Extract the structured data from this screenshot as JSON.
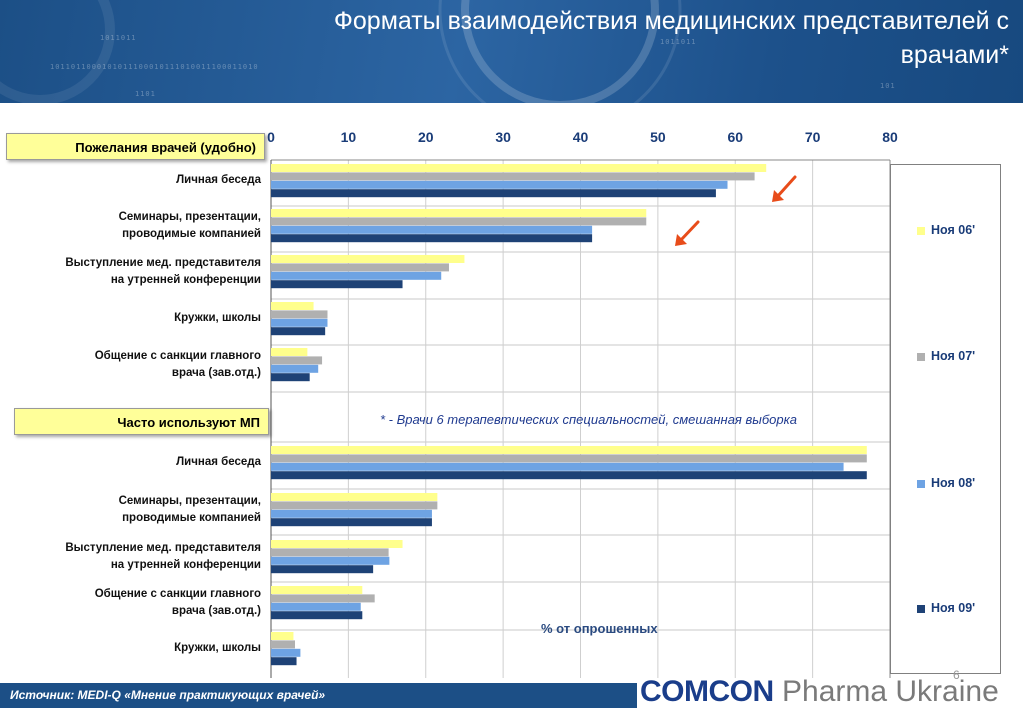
{
  "title": "Форматы взаимодействия медицинских представителей с врачами*",
  "groups": [
    {
      "label": "Пожелания врачей (удобно)"
    },
    {
      "label": "Часто используют МП"
    }
  ],
  "note": "* -  Врачи 6 терапевтических специальностей, смешанная выборка",
  "footer": {
    "source": "Источник: MEDI-Q «Мнение практикующих врачей»",
    "logo_main": "COMCON",
    "logo_sub": "Pharma Ukraine",
    "page_number": "6"
  },
  "colors": {
    "header": "#1c4f86",
    "arrow": "#e84c1a"
  },
  "chart_data": {
    "type": "bar",
    "orientation": "horizontal",
    "xlabel": "% от опрошенных",
    "xlim": [
      0,
      80
    ],
    "xticks": [
      "0",
      "10",
      "20",
      "30",
      "40",
      "50",
      "60",
      "70",
      "80"
    ],
    "legend_position": "right",
    "series": [
      {
        "name": "Ноя 06'",
        "color": "#ffff8c"
      },
      {
        "name": "Ноя 07'",
        "color": "#b0b0b0"
      },
      {
        "name": "Ноя 08'",
        "color": "#6ea3e3"
      },
      {
        "name": "Ноя 09'",
        "color": "#1e4276"
      }
    ],
    "categories": [
      {
        "group": 0,
        "label": [
          "Личная беседа"
        ],
        "values": [
          64,
          62.5,
          59,
          57.5
        ]
      },
      {
        "group": 0,
        "label": [
          "Семинары, презентации,",
          "проводимые компанией"
        ],
        "values": [
          48.5,
          48.5,
          41.5,
          41.5
        ]
      },
      {
        "group": 0,
        "label": [
          "Выступление мед. представителя",
          "на утренней конференции"
        ],
        "values": [
          25,
          23,
          22,
          17
        ]
      },
      {
        "group": 0,
        "label": [
          "Кружки, школы"
        ],
        "values": [
          5.5,
          7.3,
          7.3,
          7
        ]
      },
      {
        "group": 0,
        "label": [
          "Общение с санкции главного",
          "врача (зав.отд.)"
        ],
        "values": [
          4.7,
          6.6,
          6.1,
          5
        ]
      },
      {
        "group": 1,
        "label": [
          "Личная беседа"
        ],
        "values": [
          77,
          77,
          74,
          77
        ]
      },
      {
        "group": 1,
        "label": [
          "Семинары, презентации,",
          "проводимые компанией"
        ],
        "values": [
          21.5,
          21.5,
          20.8,
          20.8
        ]
      },
      {
        "group": 1,
        "label": [
          "Выступление мед. представителя",
          "на утренней конференции"
        ],
        "values": [
          17,
          15.2,
          15.3,
          13.2
        ]
      },
      {
        "group": 1,
        "label": [
          "Общение с санкции главного",
          "врача (зав.отд.)"
        ],
        "values": [
          11.8,
          13.4,
          11.6,
          11.8
        ]
      },
      {
        "group": 1,
        "label": [
          "Кружки, школы"
        ],
        "values": [
          2.9,
          3.1,
          3.8,
          3.3
        ]
      }
    ]
  }
}
